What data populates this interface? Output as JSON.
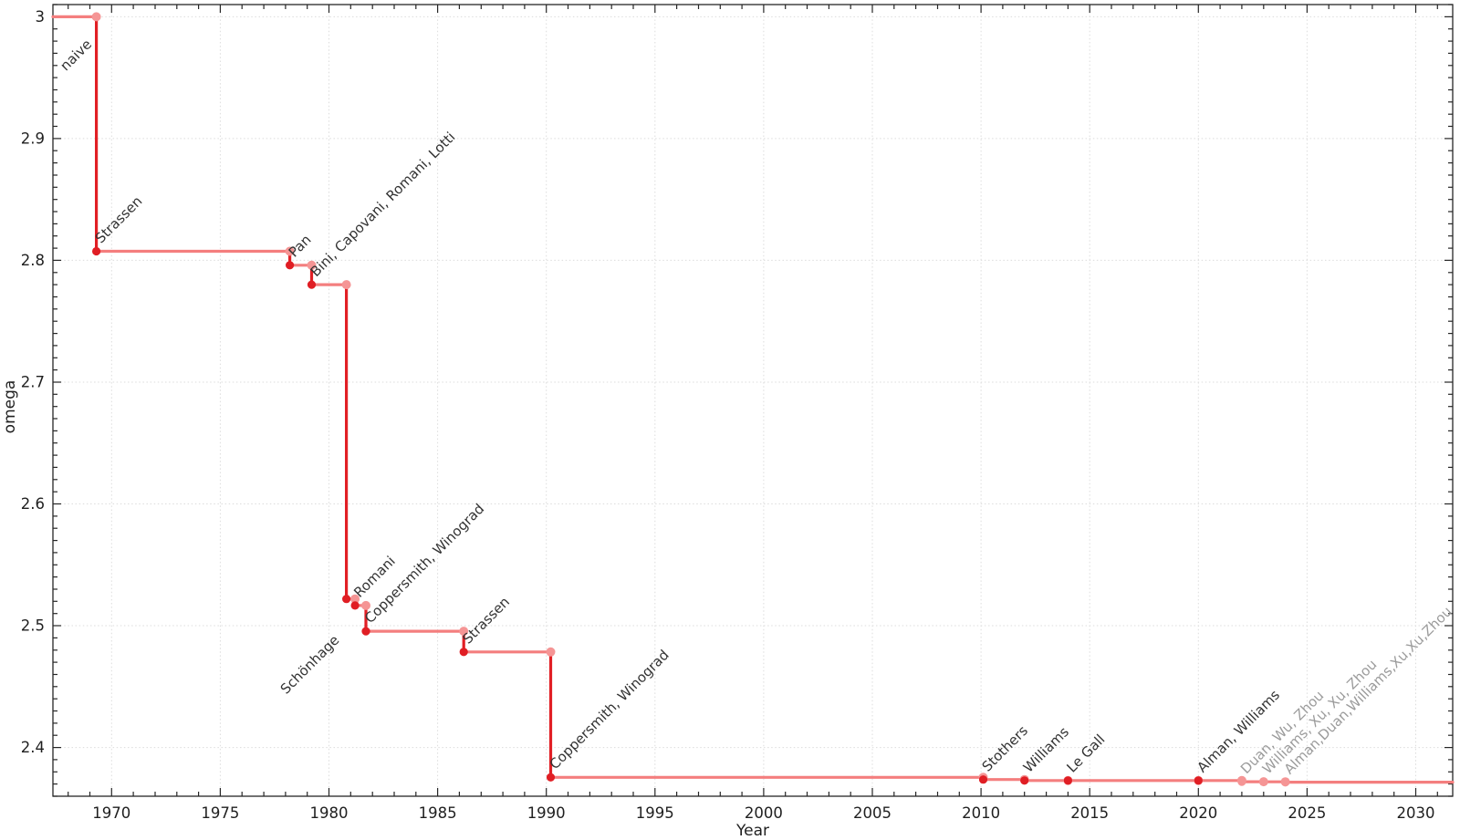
{
  "chart_data": {
    "type": "line",
    "variant": "step",
    "title": "",
    "xlabel": "Year",
    "ylabel": "omega",
    "xlim": [
      1967.3,
      2031.7
    ],
    "ylim": [
      2.36,
      3.01
    ],
    "grid": true,
    "legend": "none",
    "x_major_ticks": [
      1970,
      1975,
      1980,
      1985,
      1990,
      1995,
      2000,
      2005,
      2010,
      2015,
      2020,
      2025,
      2030
    ],
    "x_minor_step": 1,
    "y_major_ticks": [
      {
        "v": 2.4,
        "label": "2.4"
      },
      {
        "v": 2.5,
        "label": "2.5"
      },
      {
        "v": 2.6,
        "label": "2.6"
      },
      {
        "v": 2.7,
        "label": "2.7"
      },
      {
        "v": 2.8,
        "label": "2.8"
      },
      {
        "v": 2.9,
        "label": "2.9"
      },
      {
        "v": 3,
        "label": "3"
      }
    ],
    "y_minor_step": 0.01,
    "start": {
      "omega": 3,
      "label": {
        "text": "naive",
        "x": 1967.9,
        "omega": 2.955
      }
    },
    "points": [
      {
        "x": 1969.3,
        "omega": 2.8074,
        "label": "Strassen"
      },
      {
        "x": 1978.2,
        "omega": 2.796,
        "label": "Pan"
      },
      {
        "x": 1979.2,
        "omega": 2.78,
        "label": "Bini, Capovani, Romani, Lotti"
      },
      {
        "x": 1980.8,
        "omega": 2.522,
        "label": "Schönhage",
        "label_dx": -66,
        "label_dy": 105
      },
      {
        "x": 1981.2,
        "omega": 2.5166,
        "label": "Romani"
      },
      {
        "x": 1981.7,
        "omega": 2.4955,
        "label": "Coppersmith, Winograd"
      },
      {
        "x": 1986.2,
        "omega": 2.4785,
        "label": "Strassen"
      },
      {
        "x": 1990.2,
        "omega": 2.3755,
        "label": "Coppersmith, Winograd"
      },
      {
        "x": 2010.1,
        "omega": 2.3737,
        "label": "Stothers"
      },
      {
        "x": 2012.0,
        "omega": 2.3729,
        "label": "Williams"
      },
      {
        "x": 2014.0,
        "omega": 2.3728639,
        "label": "Le Gall"
      },
      {
        "x": 2020.0,
        "omega": 2.3728596,
        "label": "Alman, Williams"
      },
      {
        "x": 2022.0,
        "omega": 2.37188,
        "label": "Duan, Wu, Zhou",
        "muted": true
      },
      {
        "x": 2023.0,
        "omega": 2.371866,
        "label": "Williams, Xu, Xu, Zhou",
        "muted": true
      },
      {
        "x": 2024.0,
        "omega": 2.371552,
        "label": "Alman,Duan,Williams,Xu,Xu,Zhou",
        "muted": true
      }
    ],
    "colors": {
      "background": "#ffffff",
      "step_line": "#f47e7e",
      "drop_line": "#e11f25",
      "point": "#e01e24",
      "point_muted": "#f59595",
      "label": "#333333",
      "label_muted": "#9b9b9b",
      "grid": "#dcdcdc",
      "axis": "#262626"
    }
  }
}
